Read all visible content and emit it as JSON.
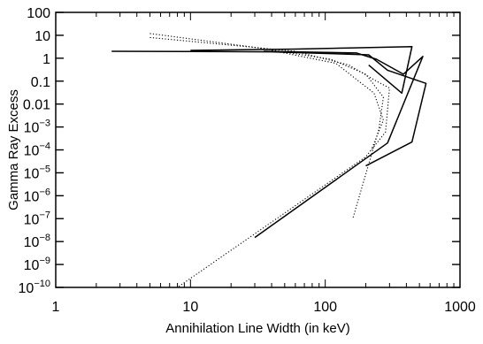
{
  "chart_data": {
    "type": "line",
    "title": "",
    "xlabel": "Annihilation Line Width (in keV)",
    "ylabel": "Gamma Ray Excess",
    "x_scale": "log",
    "y_scale": "log",
    "xlim": [
      1,
      1000
    ],
    "ylim": [
      1e-10,
      100
    ],
    "grid": false,
    "x_ticks": [
      {
        "value": 1,
        "label": "1"
      },
      {
        "value": 10,
        "label": "10"
      },
      {
        "value": 100,
        "label": "100"
      },
      {
        "value": 1000,
        "label": "1000"
      }
    ],
    "y_ticks": [
      {
        "value": 100,
        "base": "100",
        "exp": ""
      },
      {
        "value": 10,
        "base": "10",
        "exp": ""
      },
      {
        "value": 1,
        "base": "1",
        "exp": ""
      },
      {
        "value": 0.1,
        "base": "0.1",
        "exp": ""
      },
      {
        "value": 0.01,
        "base": "0.01",
        "exp": ""
      },
      {
        "value": 0.001,
        "base": "10",
        "exp": "−3"
      },
      {
        "value": 0.0001,
        "base": "10",
        "exp": "−4"
      },
      {
        "value": 1e-05,
        "base": "10",
        "exp": "−5"
      },
      {
        "value": 1e-06,
        "base": "10",
        "exp": "−6"
      },
      {
        "value": 1e-07,
        "base": "10",
        "exp": "−7"
      },
      {
        "value": 1e-08,
        "base": "10",
        "exp": "−8"
      },
      {
        "value": 1e-09,
        "base": "10",
        "exp": "−9"
      },
      {
        "value": 1e-10,
        "base": "10",
        "exp": "−10"
      }
    ],
    "series": [
      {
        "style": "solid",
        "x": [
          2.6,
          40,
          210,
          290,
          560,
          440,
          200
        ],
        "y": [
          2.0,
          1.9,
          1.4,
          0.3,
          0.08,
          0.00022,
          2e-05
        ]
      },
      {
        "style": "solid",
        "x": [
          35,
          170,
          240,
          380,
          530,
          290,
          30
        ],
        "y": [
          2.0,
          1.7,
          0.9,
          0.2,
          1.2,
          0.0002,
          1.5e-08
        ]
      },
      {
        "style": "solid",
        "x": [
          10,
          60,
          150,
          440,
          370,
          210
        ],
        "y": [
          2.2,
          2.5,
          2.8,
          3.2,
          0.03,
          0.5
        ]
      },
      {
        "style": "dotted",
        "x": [
          5.0,
          30,
          110,
          200,
          270,
          250,
          160
        ],
        "y": [
          12,
          3.0,
          0.9,
          0.2,
          0.02,
          0.0008,
          1e-07
        ]
      },
      {
        "style": "dotted",
        "x": [
          5.0,
          60,
          150,
          240,
          300,
          280,
          200,
          8.0
        ],
        "y": [
          8.0,
          2.0,
          0.5,
          0.1,
          0.05,
          0.0006,
          5e-05,
          1e-10
        ]
      },
      {
        "style": "dotted",
        "x": [
          40,
          120,
          230,
          270,
          220
        ],
        "y": [
          2.2,
          0.6,
          0.03,
          0.002,
          0.0001
        ]
      }
    ]
  }
}
